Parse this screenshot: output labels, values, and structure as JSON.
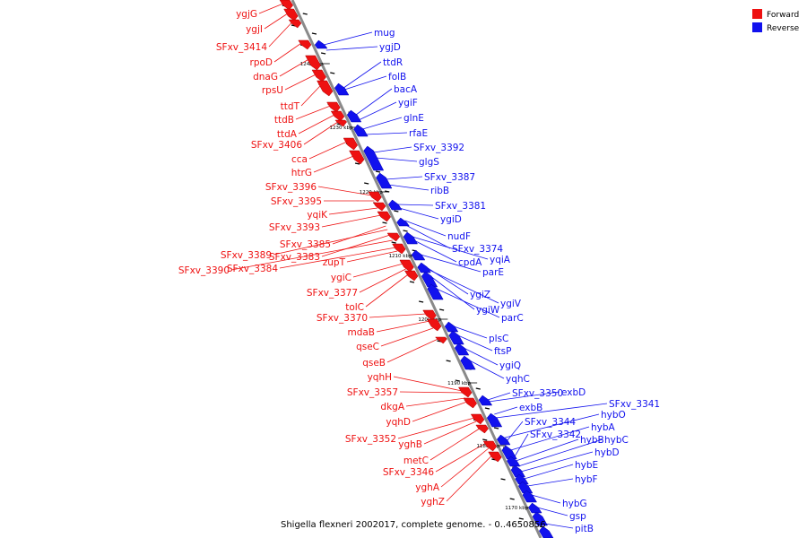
{
  "colors": {
    "forward": "#ee1111",
    "reverse": "#1111ee",
    "backbone": "#8a8a8a",
    "tick": "#000000"
  },
  "legend": {
    "forward_label": "Forward",
    "reverse_label": "Reverse"
  },
  "caption": "Shigella flexneri 2002017, complete genome. - 0..4650856",
  "ticks": [
    "1240 kbp",
    "1230 kbp",
    "1220 kbp",
    "1210 kbp",
    "1200 kbp",
    "1190 kbp",
    "1180 kbp",
    "1170 kbp"
  ],
  "forward_genes": [
    "ygjG",
    "ygjI",
    "SFxv_3414",
    "rpoD",
    "dnaG",
    "rpsU",
    "ttdT",
    "ttdB",
    "ttdA",
    "SFxv_3406",
    "cca",
    "htrG",
    "SFxv_3396",
    "SFxv_3395",
    "yqiK",
    "SFxv_3393",
    "SFxv_3385",
    "SFxv_3389",
    "SFxv_3383",
    "SFxv_3390",
    "SFxv_3384",
    "zupT",
    "ygiC",
    "SFxv_3377",
    "tolC",
    "SFxv_3370",
    "mdaB",
    "qseC",
    "qseB",
    "yqhH",
    "SFxv_3357",
    "dkgA",
    "yqhD",
    "SFxv_3352",
    "yghB",
    "metC",
    "SFxv_3346",
    "yghA",
    "yghZ"
  ],
  "reverse_genes": [
    "mug",
    "ygjD",
    "ttdR",
    "folB",
    "bacA",
    "ygiF",
    "glnE",
    "rfaE",
    "SFxv_3392",
    "glgS",
    "SFxv_3387",
    "ribB",
    "SFxv_3381",
    "ygiD",
    "nudF",
    "SFxv_3374",
    "yqiA",
    "cpdA",
    "parE",
    "ygiZ",
    "ygiV",
    "ygiW",
    "parC",
    "plsC",
    "ftsP",
    "ygiQ",
    "yqhC",
    "SFxv_3350",
    "exbD",
    "exbB",
    "SFxv_3341",
    "hybO",
    "SFxv_3344",
    "hybA",
    "SFxv_3342",
    "hybB",
    "hybC",
    "hybD",
    "hybE",
    "hybF",
    "hybG",
    "gsp",
    "pitB"
  ]
}
